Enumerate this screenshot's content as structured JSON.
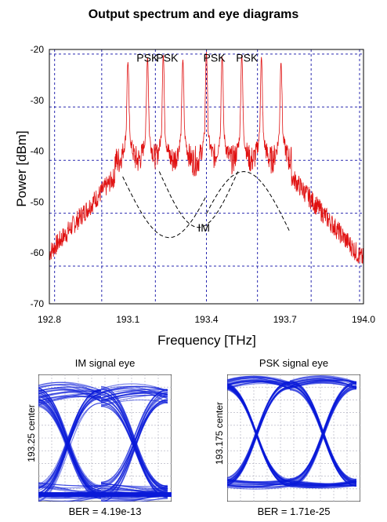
{
  "figure": {
    "title": "Output spectrum and eye diagrams"
  },
  "chart_data": [
    {
      "type": "line",
      "xlabel": "Frequency [THz]",
      "ylabel": "Power [dBm]",
      "xlim": [
        192.8,
        194.0
      ],
      "ylim": [
        -70,
        -20
      ],
      "x_ticks": [
        192.8,
        193.1,
        193.4,
        193.7,
        194.0
      ],
      "x_tick_labels": [
        "192.8",
        "193.1",
        "193.4",
        "193.7",
        "194.0"
      ],
      "y_ticks": [
        -20,
        -30,
        -40,
        -50,
        -60,
        -70
      ],
      "y_tick_labels": [
        "-20",
        "-30",
        "-40",
        "-50",
        "-60",
        "-70"
      ],
      "grid": true,
      "series": [
        {
          "color": "#e01010",
          "peaks": [
            {
              "x": 193.1,
              "y": -22.5
            },
            {
              "x": 193.175,
              "y": -21.5
            },
            {
              "x": 193.235,
              "y": -21.0
            },
            {
              "x": 193.31,
              "y": -22.0
            },
            {
              "x": 193.4,
              "y": -20.5
            },
            {
              "x": 193.46,
              "y": -21.5
            },
            {
              "x": 193.535,
              "y": -21.0
            },
            {
              "x": 193.61,
              "y": -21.5
            },
            {
              "x": 193.685,
              "y": -22.5
            }
          ],
          "sideband_edges_x": [
            193.05,
            193.725
          ],
          "floor_level_outer": -61,
          "floor_level_inner": -42
        }
      ],
      "annotations": [
        {
          "text": "PSK",
          "x": 193.175,
          "y": -20.4
        },
        {
          "text": "PSK",
          "x": 193.25,
          "y": -20.4
        },
        {
          "text": "PSK",
          "x": 193.43,
          "y": -20.4
        },
        {
          "text": "PSK",
          "x": 193.555,
          "y": -20.4
        },
        {
          "text": "IM",
          "x": 193.39,
          "y": -55
        }
      ]
    },
    {
      "type": "eye",
      "title": "IM signal eye",
      "ylabel": "193.25 center",
      "ber": "BER = 4.19e-13"
    },
    {
      "type": "eye",
      "title": "PSK signal eye",
      "ylabel": "193.175 center",
      "ber": "BER = 1.71e-25"
    }
  ]
}
